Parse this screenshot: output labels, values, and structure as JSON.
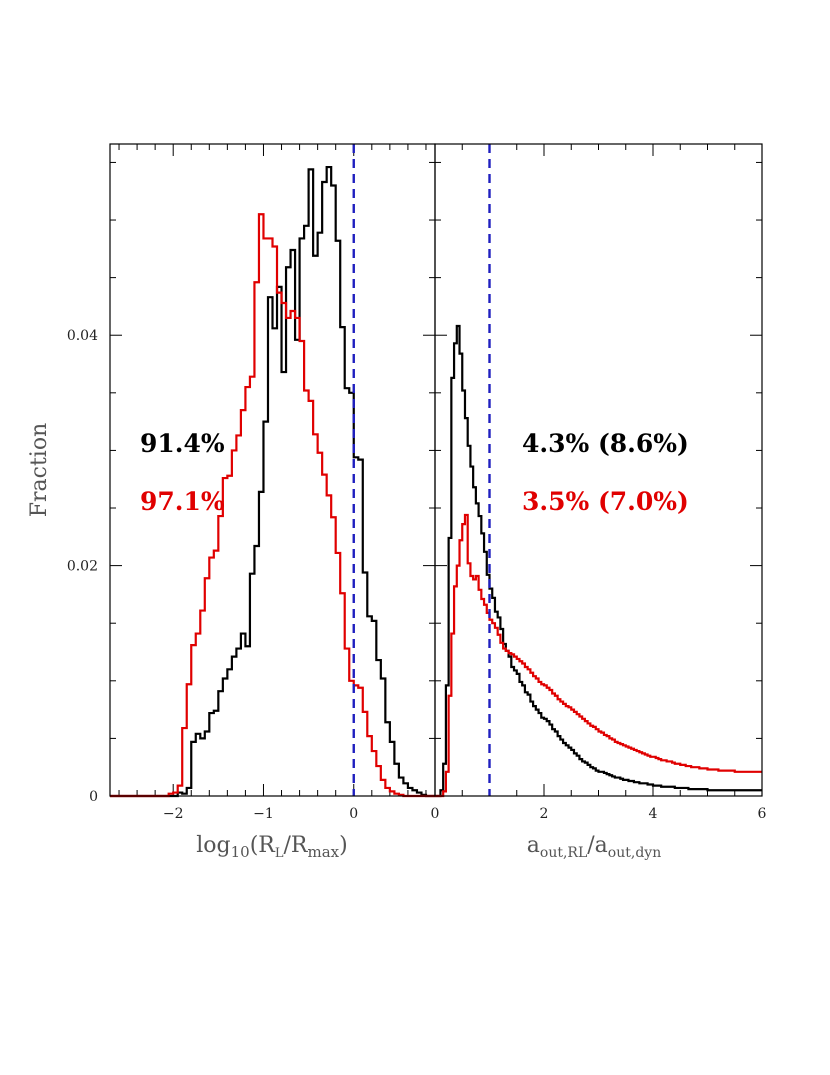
{
  "chart_data": [
    {
      "type": "line",
      "drawstyle": "steps",
      "panel": "left",
      "xlabel": "log10(RL/Rmax)",
      "xlabel_parts": {
        "pre": "log",
        "sub1": "10",
        "mid": "(R",
        "sub2": "L",
        "slash": "/R",
        "sub3": "max",
        "post": ")"
      },
      "ylabel": "Fraction",
      "xlim": [
        -2.7,
        0.9
      ],
      "ylim": [
        0,
        0.0566
      ],
      "xticks": [
        -2,
        -1,
        0
      ],
      "xtick_labels": [
        "−2",
        "−1",
        "0"
      ],
      "yticks": [
        0,
        0.02,
        0.04
      ],
      "ytick_labels": [
        "0",
        "0.02",
        "0.04"
      ],
      "vline": {
        "x": 0,
        "color": "#1f1fbf",
        "style": "dashed"
      },
      "bin_width": 0.05,
      "series": [
        {
          "color": "#000000",
          "x_start": -2.7,
          "values": [
            0,
            0,
            0,
            0,
            0,
            0,
            0,
            0,
            0,
            0,
            0,
            0,
            0,
            0,
            0,
            0.0003,
            0.0002,
            0.0007,
            0.0047,
            0.0054,
            0.005,
            0.0056,
            0.0072,
            0.0074,
            0.0091,
            0.0102,
            0.011,
            0.0121,
            0.0128,
            0.0141,
            0.013,
            0.0193,
            0.0217,
            0.0264,
            0.0325,
            0.0433,
            0.0406,
            0.0442,
            0.0368,
            0.0459,
            0.0474,
            0.0396,
            0.0484,
            0.0495,
            0.0544,
            0.0469,
            0.0489,
            0.0533,
            0.0546,
            0.053,
            0.0482,
            0.0407,
            0.0354,
            0.035,
            0.0294,
            0.0292,
            0.0194,
            0.0156,
            0.0152,
            0.0118,
            0.0102,
            0.0064,
            0.0047,
            0.0028,
            0.0016,
            0.0011,
            0.0007,
            0.0005,
            0.0003,
            0.0001,
            0,
            0
          ]
        },
        {
          "color": "#e00000",
          "x_start": -2.7,
          "values": [
            0,
            0,
            0,
            0,
            0,
            0,
            0,
            0,
            0,
            0,
            0,
            0,
            0,
            0.0002,
            0.0003,
            0.0009,
            0.0059,
            0.0097,
            0.0131,
            0.0141,
            0.0161,
            0.0189,
            0.0207,
            0.0213,
            0.0243,
            0.0276,
            0.0278,
            0.03,
            0.0313,
            0.0335,
            0.0355,
            0.0364,
            0.0446,
            0.0505,
            0.0484,
            0.0484,
            0.0477,
            0.0437,
            0.0428,
            0.0415,
            0.0421,
            0.0415,
            0.0395,
            0.0352,
            0.0343,
            0.0314,
            0.0298,
            0.0279,
            0.0261,
            0.0242,
            0.0211,
            0.0176,
            0.0128,
            0.01,
            0.0096,
            0.0094,
            0.0073,
            0.0052,
            0.0039,
            0.0026,
            0.0014,
            0.0007,
            0.0004,
            0.0002,
            0.0001,
            0,
            0,
            0,
            0,
            0,
            0,
            0
          ]
        }
      ],
      "annotations": [
        {
          "text": "91.4%",
          "color": "#000000"
        },
        {
          "text": "97.1%",
          "color": "#e00000"
        }
      ]
    },
    {
      "type": "line",
      "drawstyle": "steps",
      "panel": "right",
      "xlabel": "aout,RL/aout,dyn",
      "xlabel_parts": {
        "pre": "a",
        "sub1": "out,RL",
        "slash": "/a",
        "sub2": "out,dyn"
      },
      "xlim": [
        0,
        6
      ],
      "ylim": [
        0,
        0.0566
      ],
      "xticks": [
        0,
        2,
        4,
        6
      ],
      "xtick_labels": [
        "0",
        "2",
        "4",
        "6"
      ],
      "vline": {
        "x": 1,
        "color": "#1f1fbf",
        "style": "dashed"
      },
      "bin_width": 0.05,
      "series": [
        {
          "color": "#000000",
          "x_start": 0,
          "values": [
            0,
            0,
            0.0005,
            0.0028,
            0.0096,
            0.0224,
            0.0363,
            0.0393,
            0.0408,
            0.0384,
            0.0352,
            0.0328,
            0.0304,
            0.0286,
            0.0268,
            0.0254,
            0.0243,
            0.0228,
            0.0212,
            0.0192,
            0.018,
            0.0172,
            0.016,
            0.0155,
            0.0145,
            0.0132,
            0.0126,
            0.0121,
            0.0112,
            0.0109,
            0.0106,
            0.0099,
            0.0096,
            0.009,
            0.0088,
            0.0082,
            0.0078,
            0.0075,
            0.0072,
            0.0068,
            0.0067,
            0.0065,
            0.0062,
            0.0058,
            0.0056,
            0.0052,
            0.0049,
            0.0046,
            0.0044,
            0.0042,
            0.004,
            0.0037,
            0.0035,
            0.0032,
            0.003,
            0.0029,
            0.0027,
            0.0025,
            0.0024,
            0.0022,
            0.0021,
            0.0021,
            0.002,
            0.0019,
            0.0018,
            0.0017,
            0.0016,
            0.0016,
            0.0015,
            0.0014,
            0.0014,
            0.0013,
            0.0013,
            0.0012,
            0.0012,
            0.0011,
            0.0011,
            0.0011,
            0.001,
            0.001,
            0.0009,
            0.0009,
            0.0009,
            0.0008,
            0.0008,
            0.0008,
            0.0008,
            0.0008,
            0.0007,
            0.0007,
            0.0007,
            0.0007,
            0.0007,
            0.0006,
            0.0006,
            0.0006,
            0.0006,
            0.0006,
            0.0006,
            0.0006,
            0.0005,
            0.0005,
            0.0005,
            0.0005,
            0.0005,
            0.0005,
            0.0005,
            0.0005,
            0.0005,
            0.0005,
            0.0005,
            0.0005,
            0.0005,
            0.0005,
            0.0005,
            0.0005,
            0.0005,
            0.0005,
            0.0005,
            0.0005
          ]
        },
        {
          "color": "#e00000",
          "x_start": 0,
          "values": [
            0,
            0,
            0,
            0.0004,
            0.0021,
            0.0087,
            0.0141,
            0.0182,
            0.02,
            0.0222,
            0.0236,
            0.0244,
            0.0202,
            0.0191,
            0.0188,
            0.0191,
            0.0179,
            0.0171,
            0.0166,
            0.0159,
            0.0153,
            0.015,
            0.0146,
            0.014,
            0.0133,
            0.0128,
            0.0126,
            0.0124,
            0.0123,
            0.0121,
            0.0119,
            0.0117,
            0.0115,
            0.0112,
            0.011,
            0.0107,
            0.0104,
            0.0102,
            0.0099,
            0.0097,
            0.0096,
            0.0094,
            0.0092,
            0.0089,
            0.0087,
            0.0084,
            0.0082,
            0.008,
            0.0078,
            0.0077,
            0.0075,
            0.0073,
            0.0071,
            0.0069,
            0.0067,
            0.0065,
            0.0063,
            0.0061,
            0.006,
            0.0058,
            0.0056,
            0.0055,
            0.0053,
            0.0052,
            0.005,
            0.0049,
            0.0047,
            0.0046,
            0.0045,
            0.0044,
            0.0043,
            0.0042,
            0.0041,
            0.004,
            0.0039,
            0.0038,
            0.0037,
            0.0036,
            0.0035,
            0.0034,
            0.0034,
            0.0033,
            0.0032,
            0.0031,
            0.0031,
            0.003,
            0.003,
            0.0029,
            0.0028,
            0.0028,
            0.0027,
            0.0027,
            0.0026,
            0.0026,
            0.0025,
            0.0025,
            0.0025,
            0.0024,
            0.0024,
            0.0024,
            0.0023,
            0.0023,
            0.0023,
            0.0023,
            0.0022,
            0.0022,
            0.0022,
            0.0022,
            0.0022,
            0.0022,
            0.0021,
            0.0021,
            0.0021,
            0.0021,
            0.0021,
            0.0021,
            0.0021,
            0.0021,
            0.0021,
            0.0021
          ]
        }
      ],
      "annotations": [
        {
          "text": "4.3% (8.6%)",
          "color": "#000000"
        },
        {
          "text": "3.5% (7.0%)",
          "color": "#e00000"
        }
      ]
    }
  ]
}
